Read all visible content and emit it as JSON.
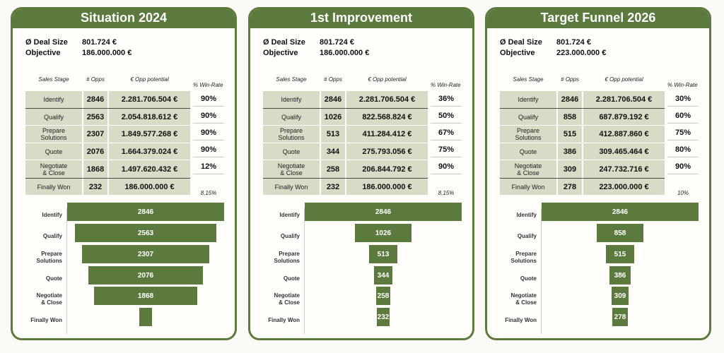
{
  "table_headers": {
    "stage": "Sales Stage",
    "opps": "# Opps",
    "potential": "€ Opp potential",
    "winrate": "% Win-Rate"
  },
  "labels": {
    "deal_size": "Ø Deal Size",
    "objective": "Objective"
  },
  "colors": {
    "accent": "#5c7a3e",
    "cell": "#d6dcc5"
  },
  "chart_data": [
    {
      "type": "bar",
      "title": "Situation 2024",
      "deal_size": "801.724 €",
      "objective": "186.000.000 €",
      "categories": [
        "Identify",
        "Qualify",
        "Prepare Solutions",
        "Quote",
        "Negotiate & Close",
        "Finally Won"
      ],
      "values": [
        2846,
        2563,
        2307,
        2076,
        1868,
        232
      ],
      "potential": [
        "2.281.706.504 €",
        "2.054.818.612 €",
        "1.849.577.268 €",
        "1.664.379.024 €",
        "1.497.620.432 €",
        "186.000.000 €"
      ],
      "win_rates": [
        "90%",
        "90%",
        "90%",
        "90%",
        "12%"
      ],
      "final_rate": "8,15%"
    },
    {
      "type": "bar",
      "title": "1st Improvement",
      "deal_size": "801.724 €",
      "objective": "186.000.000 €",
      "categories": [
        "Identify",
        "Qualify",
        "Prepare Solutions",
        "Quote",
        "Negotiate & Close",
        "Finally Won"
      ],
      "values": [
        2846,
        1026,
        513,
        344,
        258,
        232
      ],
      "potential": [
        "2.281.706.504 €",
        "822.568.824 €",
        "411.284.412 €",
        "275.793.056 €",
        "206.844.792 €",
        "186.000.000 €"
      ],
      "win_rates": [
        "36%",
        "50%",
        "67%",
        "75%",
        "90%"
      ],
      "final_rate": "8,15%"
    },
    {
      "type": "bar",
      "title": "Target Funnel 2026",
      "deal_size": "801.724 €",
      "objective": "223.000.000 €",
      "categories": [
        "Identify",
        "Qualify",
        "Prepare Solutions",
        "Quote",
        "Negotiate & Close",
        "Finally Won"
      ],
      "values": [
        2846,
        858,
        515,
        386,
        309,
        278
      ],
      "potential": [
        "2.281.706.504 €",
        "687.879.192 €",
        "412.887.860 €",
        "309.465.464 €",
        "247.732.716 €",
        "223.000.000 €"
      ],
      "win_rates": [
        "30%",
        "60%",
        "75%",
        "80%",
        "90%"
      ],
      "final_rate": "10%"
    }
  ]
}
